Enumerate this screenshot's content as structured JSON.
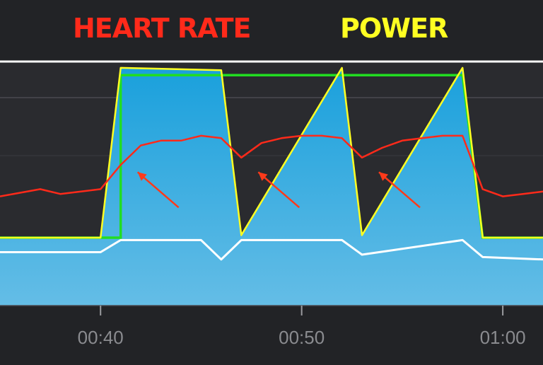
{
  "legend": {
    "heart_rate": {
      "label": "HEART RATE",
      "color": "#ff2a1a"
    },
    "power": {
      "label": "POWER",
      "color": "#ffff22"
    }
  },
  "colors": {
    "background": "#222326",
    "fill_top": "#1aa0dc",
    "fill_bottom": "#64bde6",
    "target": "#22dd22",
    "white_line": "#ffffff",
    "arrow": "#ff3a1a",
    "axis": "#9a9b9f"
  },
  "chart_data": {
    "type": "line",
    "x_unit": "mm:ss",
    "xlim": [
      "00:35",
      "01:02"
    ],
    "xticks": [
      "00:40",
      "00:50",
      "01:00"
    ],
    "grid": true,
    "series": [
      {
        "name": "HEART RATE",
        "x": [
          "00:35",
          "00:37",
          "00:38",
          "00:40",
          "00:41",
          "00:42",
          "00:43",
          "00:44",
          "00:45",
          "00:46",
          "00:47",
          "00:48",
          "00:49",
          "00:50",
          "00:51",
          "00:52",
          "00:53",
          "00:54",
          "00:55",
          "00:56",
          "00:57",
          "00:58",
          "00:59",
          "01:00",
          "01:01",
          "01:02"
        ],
        "values": [
          0.45,
          0.48,
          0.46,
          0.48,
          0.58,
          0.66,
          0.68,
          0.68,
          0.7,
          0.69,
          0.61,
          0.67,
          0.69,
          0.7,
          0.7,
          0.69,
          0.61,
          0.65,
          0.68,
          0.69,
          0.7,
          0.7,
          0.48,
          0.45,
          0.46,
          0.47
        ]
      },
      {
        "name": "POWER",
        "x": [
          "00:35",
          "00:40",
          "00:41",
          "00:46",
          "00:47",
          "00:52",
          "00:53",
          "00:58",
          "00:59",
          "01:02"
        ],
        "values": [
          0.28,
          0.28,
          0.98,
          0.97,
          0.29,
          0.98,
          0.29,
          0.98,
          0.28,
          0.28
        ]
      },
      {
        "x": [
          "00:35",
          "00:40",
          "00:41",
          "00:45",
          "00:46",
          "00:47",
          "00:52",
          "00:53",
          "00:58",
          "00:59",
          "01:02"
        ],
        "values": [
          0.22,
          0.22,
          0.27,
          0.27,
          0.19,
          0.27,
          0.27,
          0.21,
          0.27,
          0.2,
          0.19
        ]
      }
    ],
    "target_blocks": [
      {
        "from": "00:35",
        "to": "00:41",
        "level": "low"
      },
      {
        "from": "00:41",
        "to": "00:46",
        "level": "high"
      },
      {
        "from": "00:47",
        "to": "00:52",
        "level": "high"
      },
      {
        "from": "00:53",
        "to": "00:58",
        "level": "high"
      },
      {
        "from": "00:59",
        "to": "01:02",
        "level": "low"
      }
    ],
    "annotations": [
      {
        "type": "arrow",
        "points_to": "HEART RATE",
        "at": "00:41"
      },
      {
        "type": "arrow",
        "points_to": "HEART RATE",
        "at": "00:47"
      },
      {
        "type": "arrow",
        "points_to": "HEART RATE",
        "at": "00:53"
      }
    ]
  }
}
